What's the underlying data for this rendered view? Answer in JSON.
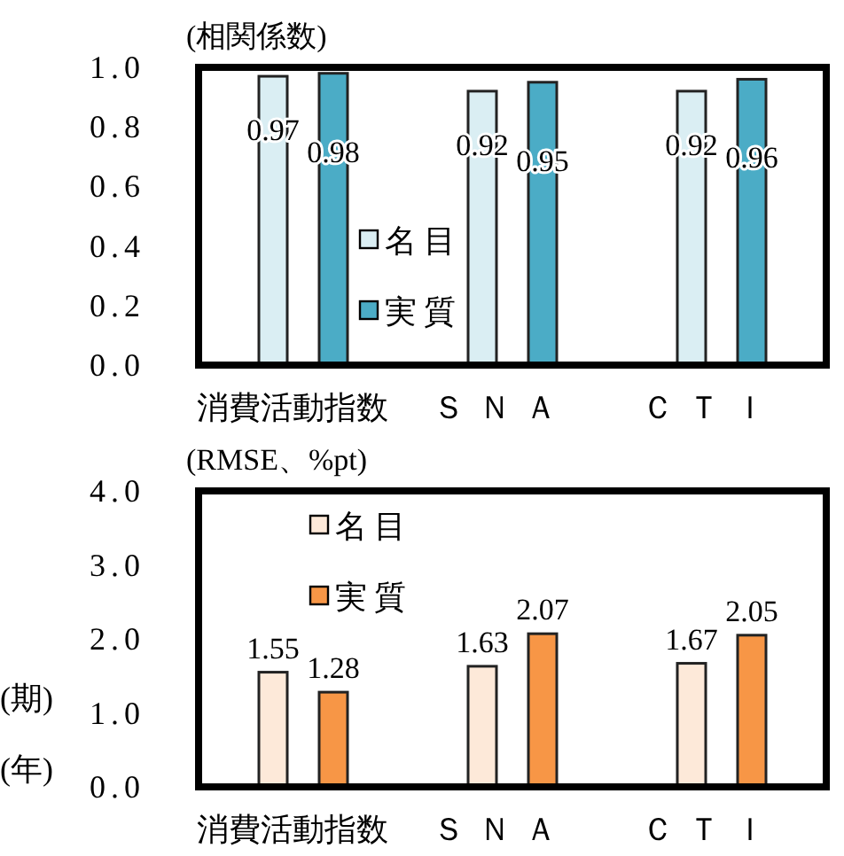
{
  "chart_data": [
    {
      "type": "bar",
      "ylabel": "(相関係数)",
      "categories": [
        "消費活動指数",
        "ＳＮＡ",
        "ＣＴＩ"
      ],
      "series": [
        {
          "name": "名目",
          "color": "#daeef3",
          "values": [
            0.97,
            0.92,
            0.92
          ]
        },
        {
          "name": "実質",
          "color": "#4bacc6",
          "values": [
            0.98,
            0.95,
            0.96
          ]
        }
      ],
      "ylim": [
        0,
        1
      ],
      "yticks": [
        {
          "value": 0,
          "label": "0.0"
        },
        {
          "value": 0.2,
          "label": "0.2"
        },
        {
          "value": 0.4,
          "label": "0.4"
        },
        {
          "value": 0.6,
          "label": "0.6"
        },
        {
          "value": 0.8,
          "label": "0.8"
        },
        {
          "value": 1,
          "label": "1.0"
        }
      ],
      "data_labels": true,
      "legend": "bottom left",
      "grid": false
    },
    {
      "type": "bar",
      "ylabel": "(RMSE、%pt)",
      "categories": [
        "消費活動指数",
        "ＳＮＡ",
        "ＣＴＩ"
      ],
      "series": [
        {
          "name": "名目",
          "color": "#fde9d9",
          "values": [
            1.55,
            1.63,
            1.67
          ]
        },
        {
          "name": "実質",
          "color": "#f79646",
          "values": [
            1.28,
            2.07,
            2.05
          ]
        }
      ],
      "ylim": [
        0,
        4
      ],
      "yticks": [
        {
          "value": 0,
          "label": "0.0"
        },
        {
          "value": 1,
          "label": "1.0"
        },
        {
          "value": 2,
          "label": "2.0"
        },
        {
          "value": 3,
          "label": "3.0"
        },
        {
          "value": 4,
          "label": "4.0"
        }
      ],
      "data_labels": true,
      "legend": "top left",
      "grid": false,
      "annotations": [
        "(期)",
        "(年)"
      ]
    }
  ]
}
